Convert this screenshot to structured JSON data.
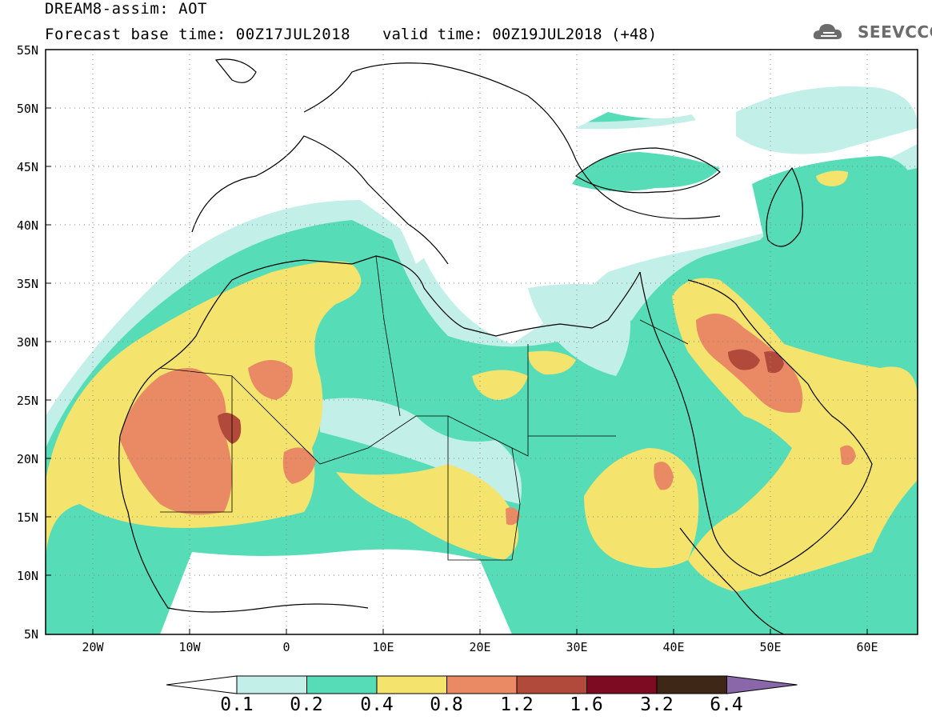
{
  "header": {
    "line1": "DREAM8-assim: AOT",
    "line2": "Forecast base time: 00Z17JUL2018",
    "valid": "valid time: 00Z19JUL2018 (+48)",
    "logo_text": "SEEVCCC"
  },
  "axes": {
    "lat_labels": [
      "55N",
      "50N",
      "45N",
      "40N",
      "35N",
      "30N",
      "25N",
      "20N",
      "15N",
      "10N",
      "5N"
    ],
    "lon_labels": [
      "20W",
      "10W",
      "0",
      "10E",
      "20E",
      "30E",
      "40E",
      "50E",
      "60E"
    ]
  },
  "colorbar": {
    "thresholds": [
      "0.1",
      "0.2",
      "0.4",
      "0.8",
      "1.2",
      "1.6",
      "3.2",
      "6.4"
    ],
    "colors": [
      "#ffffff",
      "#c2efe8",
      "#56ddb7",
      "#f4e36d",
      "#e98a64",
      "#b24a3c",
      "#7d0c23",
      "#3e2716",
      "#8a67a8"
    ]
  },
  "map": {
    "extent": {
      "lon_min": -25,
      "lon_max": 65,
      "lat_min": 5,
      "lat_max": 55
    },
    "frame_color": "#000000",
    "grid": "dotted"
  }
}
